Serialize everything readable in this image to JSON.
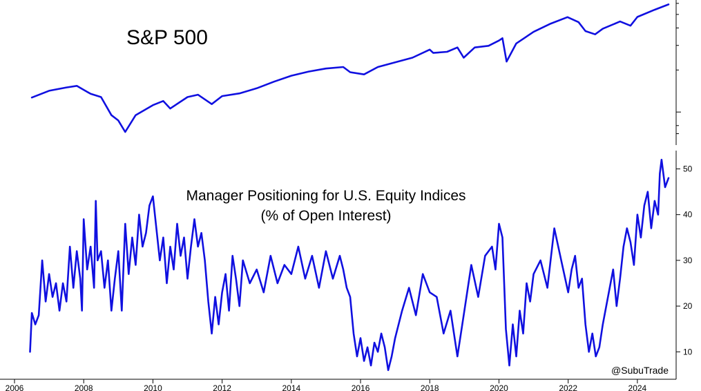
{
  "chart_data": [
    {
      "type": "line",
      "panel": "top",
      "title": "S&P 500",
      "xlabel": "",
      "ylabel": "",
      "log_scale": true,
      "grid": false,
      "color": "#1010e0",
      "series": [
        {
          "x": [
            2006.5,
            2007.0,
            2007.5,
            2007.8,
            2008.2,
            2008.5,
            2008.8,
            2009.0,
            2009.2,
            2009.5,
            2010.0,
            2010.3,
            2010.5,
            2011.0,
            2011.3,
            2011.7,
            2012.0,
            2012.5,
            2013.0,
            2013.5,
            2014.0,
            2014.5,
            2015.0,
            2015.5,
            2015.7,
            2016.1,
            2016.5,
            2017.0,
            2017.5,
            2018.0,
            2018.1,
            2018.5,
            2018.8,
            2018.98,
            2019.3,
            2019.7,
            2020.0,
            2020.1,
            2020.22,
            2020.5,
            2021.0,
            2021.5,
            2021.98,
            2022.3,
            2022.5,
            2022.78,
            2023.0,
            2023.5,
            2023.8,
            2024.0,
            2024.5,
            2024.9
          ],
          "values": [
            1270,
            1420,
            1500,
            1540,
            1350,
            1280,
            950,
            870,
            720,
            950,
            1120,
            1200,
            1060,
            1280,
            1330,
            1140,
            1300,
            1360,
            1480,
            1650,
            1820,
            1950,
            2050,
            2100,
            1930,
            1860,
            2100,
            2270,
            2450,
            2800,
            2650,
            2700,
            2900,
            2450,
            2900,
            2980,
            3250,
            3380,
            2300,
            3100,
            3750,
            4300,
            4780,
            4400,
            3800,
            3600,
            3950,
            4450,
            4150,
            4800,
            5400,
            5900
          ]
        }
      ]
    },
    {
      "type": "line",
      "panel": "bottom",
      "title": "Manager Positioning for U.S. Equity Indices",
      "subtitle": "(% of Open Interest)",
      "xlabel": "",
      "ylabel": "",
      "ylim": [
        4,
        54
      ],
      "xlim": [
        2006.0,
        2025.2
      ],
      "grid": false,
      "color": "#1010e0",
      "yticks": [
        "10",
        "20",
        "30",
        "40",
        "50"
      ],
      "xticks": [
        "2006",
        "2008",
        "2010",
        "2012",
        "2014",
        "2016",
        "2018",
        "2020",
        "2022",
        "2024"
      ],
      "series": [
        {
          "x": [
            2006.45,
            2006.5,
            2006.6,
            2006.7,
            2006.8,
            2006.9,
            2007.0,
            2007.1,
            2007.2,
            2007.3,
            2007.4,
            2007.5,
            2007.6,
            2007.7,
            2007.8,
            2007.9,
            2007.95,
            2008.0,
            2008.1,
            2008.2,
            2008.3,
            2008.35,
            2008.4,
            2008.5,
            2008.6,
            2008.7,
            2008.8,
            2008.9,
            2009.0,
            2009.1,
            2009.2,
            2009.3,
            2009.4,
            2009.5,
            2009.6,
            2009.7,
            2009.8,
            2009.9,
            2010.0,
            2010.1,
            2010.2,
            2010.3,
            2010.4,
            2010.5,
            2010.6,
            2010.7,
            2010.8,
            2010.9,
            2011.0,
            2011.1,
            2011.2,
            2011.3,
            2011.4,
            2011.5,
            2011.6,
            2011.7,
            2011.8,
            2011.9,
            2012.0,
            2012.1,
            2012.2,
            2012.3,
            2012.4,
            2012.5,
            2012.6,
            2012.8,
            2013.0,
            2013.2,
            2013.4,
            2013.6,
            2013.8,
            2014.0,
            2014.2,
            2014.4,
            2014.6,
            2014.8,
            2015.0,
            2015.2,
            2015.4,
            2015.5,
            2015.6,
            2015.7,
            2015.8,
            2015.9,
            2016.0,
            2016.1,
            2016.2,
            2016.3,
            2016.4,
            2016.5,
            2016.6,
            2016.7,
            2016.8,
            2016.9,
            2017.0,
            2017.2,
            2017.4,
            2017.6,
            2017.8,
            2018.0,
            2018.2,
            2018.4,
            2018.6,
            2018.8,
            2019.0,
            2019.2,
            2019.4,
            2019.6,
            2019.8,
            2019.9,
            2020.0,
            2020.1,
            2020.2,
            2020.3,
            2020.4,
            2020.5,
            2020.6,
            2020.7,
            2020.8,
            2020.9,
            2021.0,
            2021.2,
            2021.4,
            2021.6,
            2021.8,
            2022.0,
            2022.1,
            2022.2,
            2022.3,
            2022.4,
            2022.5,
            2022.6,
            2022.7,
            2022.8,
            2022.9,
            2023.0,
            2023.1,
            2023.2,
            2023.3,
            2023.4,
            2023.5,
            2023.6,
            2023.7,
            2023.8,
            2023.9,
            2024.0,
            2024.1,
            2024.2,
            2024.3,
            2024.4,
            2024.5,
            2024.6,
            2024.65,
            2024.7,
            2024.8,
            2024.9
          ],
          "values": [
            10,
            18.5,
            16,
            18,
            30,
            21,
            27,
            22,
            25,
            19,
            25,
            21,
            33,
            24,
            32,
            26,
            19,
            39,
            28,
            33,
            24,
            43,
            30,
            32,
            24,
            30,
            19,
            26,
            32,
            19,
            38,
            27,
            35,
            29,
            40,
            33,
            36,
            42,
            44,
            37,
            30,
            35,
            25,
            33,
            28,
            38,
            31,
            35,
            26,
            33,
            39,
            33,
            36,
            30,
            21,
            14,
            22,
            16,
            23,
            27,
            19,
            31,
            26,
            20,
            30,
            25,
            28,
            23,
            31,
            25,
            29,
            27,
            33,
            26,
            31,
            24,
            32,
            26,
            31,
            28,
            24,
            22,
            14,
            9,
            13,
            8,
            11,
            7,
            12,
            10,
            14,
            11,
            6,
            9,
            13,
            19,
            24,
            18,
            27,
            23,
            22,
            14,
            19,
            9,
            19,
            29,
            22,
            31,
            33,
            28,
            38,
            35,
            15,
            7,
            16,
            9,
            19,
            14,
            25,
            21,
            27,
            30,
            24,
            37,
            30,
            23,
            28,
            31,
            24,
            26,
            16,
            10,
            14,
            9,
            11,
            16,
            20,
            24,
            28,
            20,
            26,
            33,
            37,
            34,
            29,
            40,
            35,
            42,
            45,
            37,
            43,
            40,
            49,
            52,
            46,
            48
          ]
        }
      ]
    }
  ],
  "watermark": "@SubuTrade"
}
